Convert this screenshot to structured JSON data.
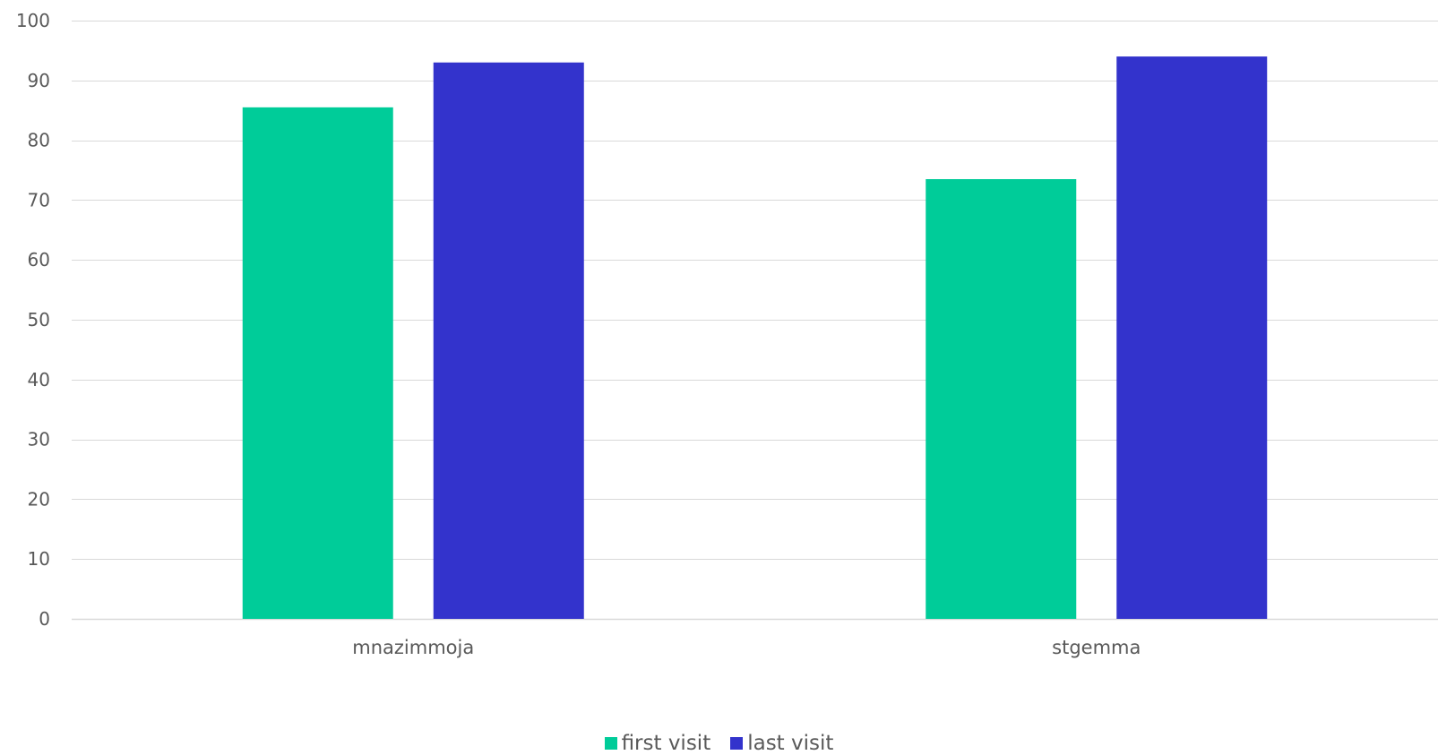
{
  "chart_data": {
    "type": "bar",
    "categories": [
      "mnazimmoja",
      "stgemma"
    ],
    "series": [
      {
        "name": "first visit",
        "values": [
          85.5,
          73.5
        ],
        "color": "#00CC99"
      },
      {
        "name": "last visit",
        "values": [
          93,
          94
        ],
        "color": "#3333CC"
      }
    ],
    "ylim": [
      0,
      100
    ],
    "yticks": [
      0,
      10,
      20,
      30,
      40,
      50,
      60,
      70,
      80,
      90,
      100
    ],
    "grid": true,
    "legend": "bottom-center",
    "gridline_color": "#D9D9D9",
    "axis_label_color": "#595959"
  }
}
